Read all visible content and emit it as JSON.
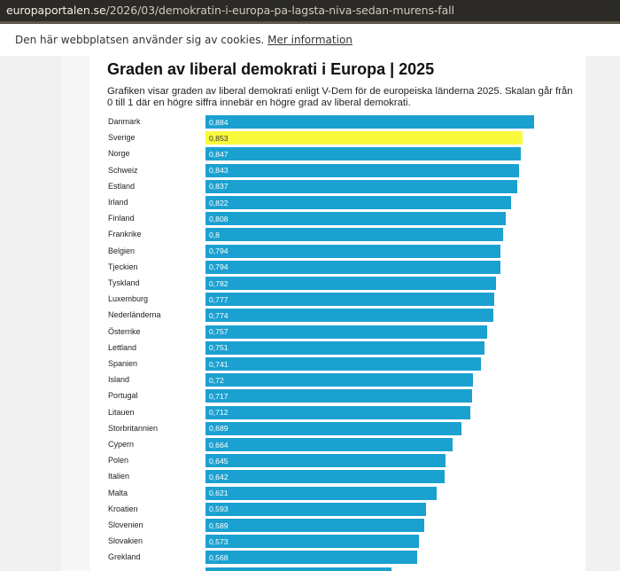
{
  "browser": {
    "url_host": "europaportalen.se",
    "url_path": "/2026/03/demokratin-i-europa-pa-lagsta-niva-sedan-murens-fall"
  },
  "cookie_banner": {
    "text": "Den här webbplatsen använder sig av cookies.",
    "link": "Mer information"
  },
  "colors": {
    "bar": "#1ba1d0",
    "highlight": "#fafa3c"
  },
  "chart_data": {
    "type": "bar",
    "orientation": "horizontal",
    "title": "Graden av liberal demokrati i Europa | 2025",
    "subtitle": "Grafiken visar graden av liberal demokrati enligt V-Dem för de europeiska länderna 2025. Skalan går från 0 till 1 där en högre siffra innebär en högre grad av liberal demokrati.",
    "categories": [
      "Danmark",
      "Sverige",
      "Norge",
      "Schweiz",
      "Estland",
      "Irland",
      "Finland",
      "Frankrike",
      "Belgien",
      "Tjeckien",
      "Tyskland",
      "Luxemburg",
      "Nederländerna",
      "Österrike",
      "Lettland",
      "Spanien",
      "Island",
      "Portugal",
      "Litauen",
      "Storbritannien",
      "Cypern",
      "Polen",
      "Italien",
      "Malta",
      "Kroatien",
      "Slovenien",
      "Slovakien",
      "Grekland"
    ],
    "values": [
      0.884,
      0.853,
      0.847,
      0.843,
      0.837,
      0.822,
      0.808,
      0.8,
      0.794,
      0.794,
      0.782,
      0.777,
      0.774,
      0.757,
      0.751,
      0.741,
      0.72,
      0.717,
      0.712,
      0.689,
      0.664,
      0.645,
      0.642,
      0.621,
      0.593,
      0.589,
      0.573,
      0.568
    ],
    "labels": [
      "0,884",
      "0,853",
      "0,847",
      "0,843",
      "0,837",
      "0,822",
      "0,808",
      "0,8",
      "0,794",
      "0,794",
      "0,782",
      "0,777",
      "0,774",
      "0,757",
      "0,751",
      "0,741",
      "0,72",
      "0,717",
      "0,712",
      "0,689",
      "0,664",
      "0,645",
      "0,642",
      "0,621",
      "0,593",
      "0,589",
      "0,573",
      "0,568"
    ],
    "highlight": "Sverige",
    "partial_next_value": 0.5
  }
}
